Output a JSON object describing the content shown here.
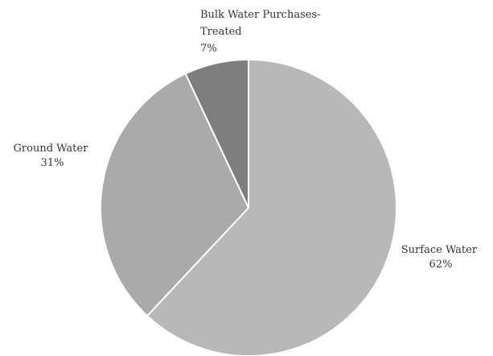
{
  "chart_data": {
    "type": "pie",
    "title": "",
    "start_angle_deg": 0,
    "direction": "clockwise",
    "slices": [
      {
        "label": "Surface Water",
        "pct_text": "62%",
        "value": 62,
        "color": "#b7b8ba"
      },
      {
        "label": "Ground Water",
        "pct_text": "31%",
        "value": 31,
        "color": "#a9aaac"
      },
      {
        "label_lines": [
          "Bulk Water Purchases-",
          "Treated"
        ],
        "pct_text": "7%",
        "value": 7,
        "color": "#7d7e80"
      }
    ],
    "slice_border_color": "#ffffff"
  }
}
